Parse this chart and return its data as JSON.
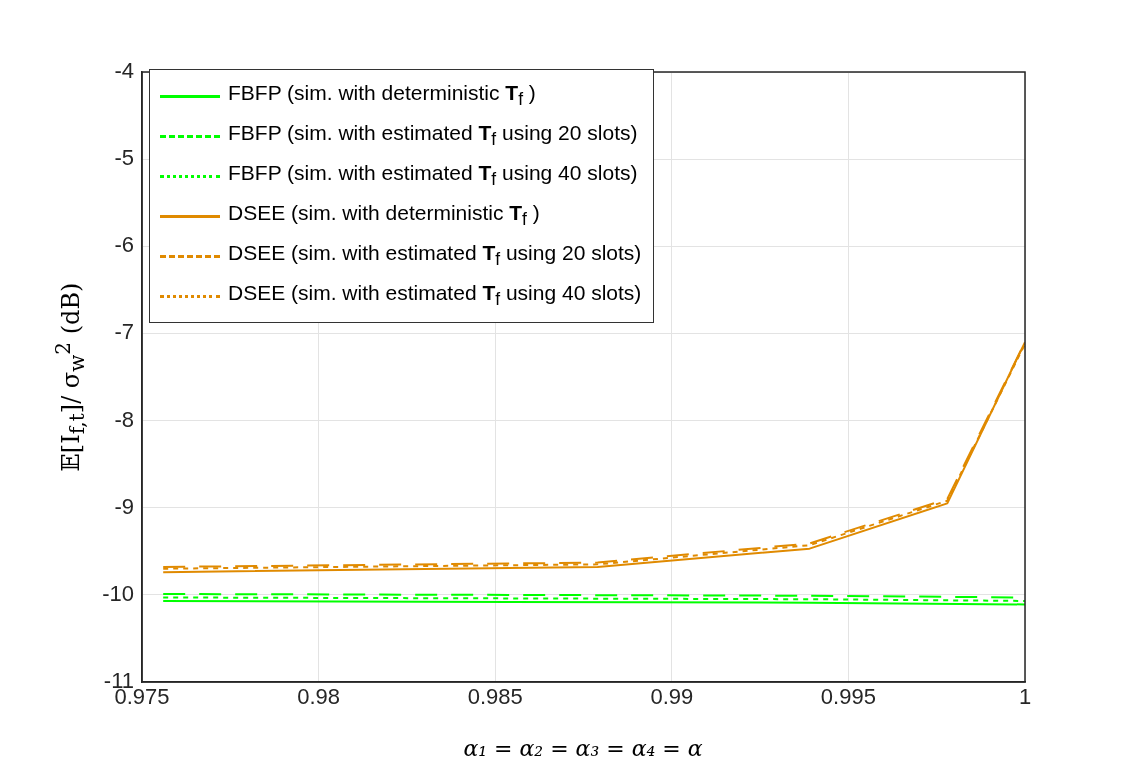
{
  "chart_data": {
    "type": "line",
    "xlabel": "α₁ = α₂ = α₃ = α₄ = α",
    "ylabel": "𝔼[I$_{f,t}$]/ σ$_{w}$$^{2}$ (dB)",
    "xlim": [
      0.975,
      1
    ],
    "xticks": [
      0.975,
      0.98,
      0.985,
      0.99,
      0.995,
      1
    ],
    "ylim": [
      -11,
      -4
    ],
    "yticks": [
      -11,
      -10,
      -9,
      -8,
      -7,
      -6,
      -5,
      -4
    ],
    "grid": true,
    "legend": "top left",
    "marker": "none",
    "series": [
      {
        "name": "FBFP (sim. with deterministic T$_{f}$ )",
        "color": "#00ff00",
        "line_style": "solid",
        "x": [
          0.9756,
          0.9939,
          1
        ],
        "values": [
          -10.07,
          -10.09,
          -10.11
        ]
      },
      {
        "name": "FBFP (sim. with estimated T$_{f}$  using 20 slots)",
        "color": "#00ff00",
        "line_style": "dashed",
        "x": [
          0.9756,
          0.9939,
          1
        ],
        "values": [
          -9.99,
          -10.01,
          -10.03
        ]
      },
      {
        "name": "FBFP (sim. with estimated T$_{f}$  using 40 slots)",
        "color": "#00ff00",
        "line_style": "dotted",
        "x": [
          0.9756,
          0.9939,
          1
        ],
        "values": [
          -10.03,
          -10.05,
          -10.07
        ]
      },
      {
        "name": "DSEE (sim. with deterministic T$_{f}$ )",
        "color": "#e08a00",
        "line_style": "solid",
        "x": [
          0.9756,
          0.9879,
          0.9939,
          0.9978,
          1
        ],
        "values": [
          -9.74,
          -9.68,
          -9.47,
          -8.95,
          -7.1
        ]
      },
      {
        "name": "DSEE (sim. with estimated T$_{f}$  using 20 slots)",
        "color": "#e08a00",
        "line_style": "dashed",
        "x": [
          0.9756,
          0.9879,
          0.9939,
          0.9978,
          1
        ],
        "values": [
          -9.68,
          -9.63,
          -9.41,
          -8.9,
          -7.1
        ]
      },
      {
        "name": "DSEE (sim. with estimated T$_{f}$  using 40 slots)",
        "color": "#e08a00",
        "line_style": "dotted",
        "x": [
          0.9756,
          0.9879,
          0.9939,
          0.9978,
          1
        ],
        "values": [
          -9.7,
          -9.65,
          -9.43,
          -8.92,
          -7.12
        ]
      }
    ]
  }
}
